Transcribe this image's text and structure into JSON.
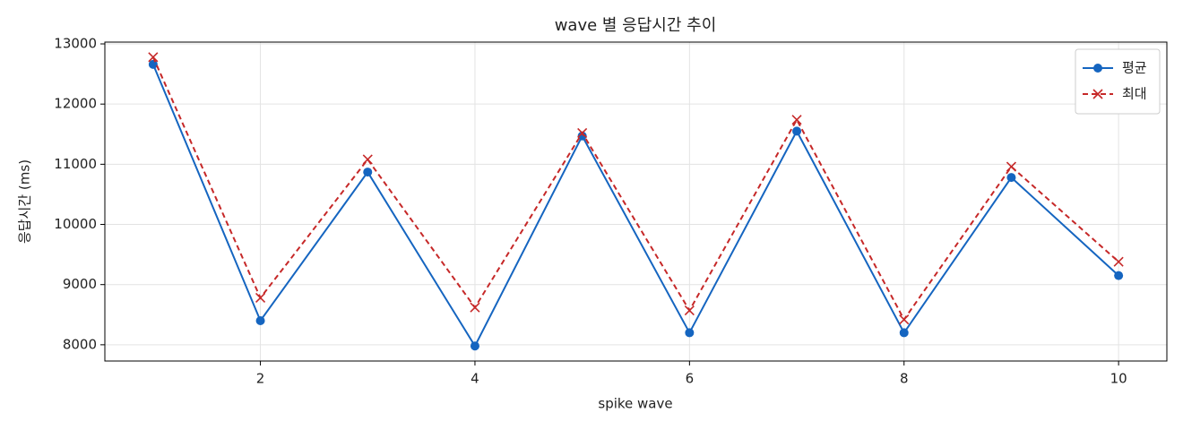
{
  "chart_data": {
    "type": "line",
    "title": "wave 별 응답시간 추이",
    "xlabel": "spike wave",
    "ylabel": "응답시간 (ms)",
    "x": [
      1,
      2,
      3,
      4,
      5,
      6,
      7,
      8,
      9,
      10
    ],
    "series": [
      {
        "name": "평균",
        "color": "#1565c0",
        "marker": "o",
        "dash": false,
        "values": [
          12660,
          8400,
          10870,
          7980,
          11470,
          8200,
          11550,
          8200,
          10780,
          9150
        ]
      },
      {
        "name": "최대",
        "color": "#c62828",
        "marker": "x",
        "dash": true,
        "values": [
          12780,
          8780,
          11080,
          8620,
          11520,
          8570,
          11740,
          8420,
          10960,
          9380
        ]
      }
    ],
    "xlim": [
      0.55,
      10.45
    ],
    "xticks": [
      2,
      4,
      6,
      8,
      10
    ],
    "ylim": [
      7730,
      13030
    ],
    "yticks": [
      8000,
      9000,
      10000,
      11000,
      12000,
      13000
    ],
    "grid": true,
    "legend": "upper right"
  }
}
